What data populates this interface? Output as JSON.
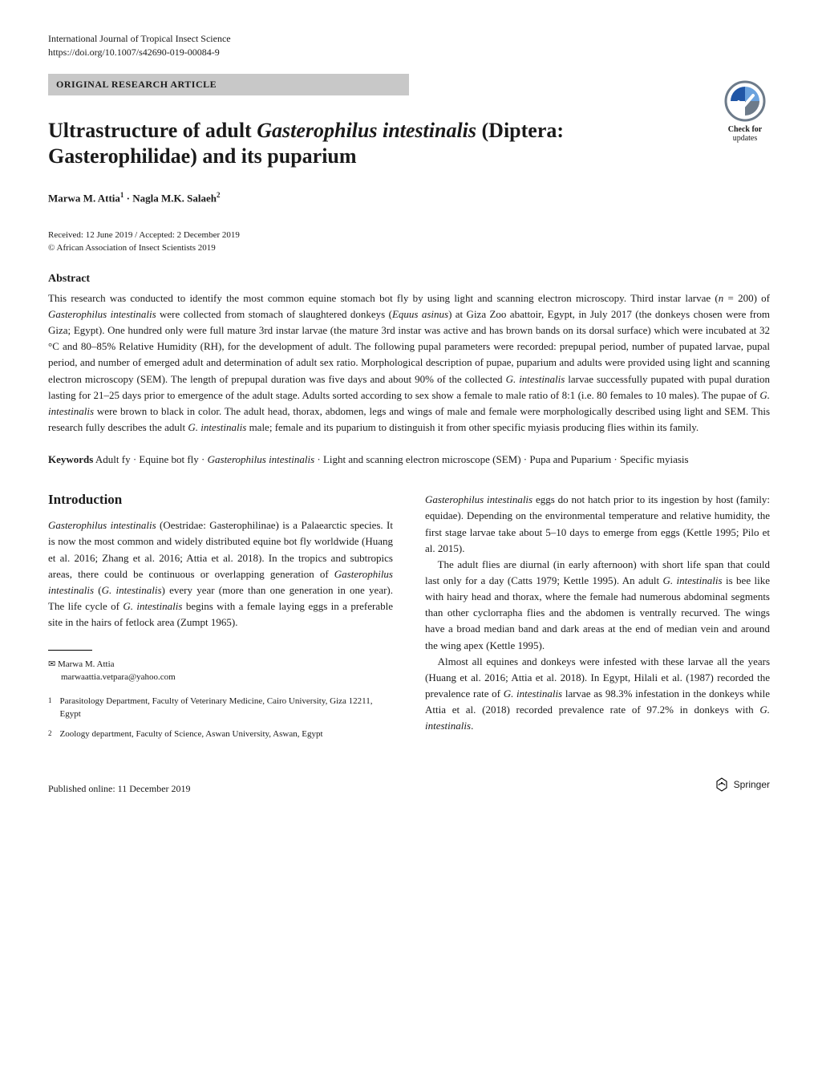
{
  "journal": {
    "name": "International Journal of Tropical Insect Science",
    "doi_url": "https://doi.org/10.1007/s42690-019-00084-9"
  },
  "article_type": "ORIGINAL RESEARCH ARTICLE",
  "check_updates": {
    "line1": "Check for",
    "line2": "updates"
  },
  "title_parts": {
    "pre": "Ultrastructure of adult ",
    "genus": "Gasterophilus intestinalis",
    "post": " (Diptera: Gasterophilidae) and its puparium"
  },
  "authors_html": "Marwa M. Attia<sup>1</sup> · Nagla M.K. Salaeh<sup>2</sup>",
  "dates": {
    "received_accepted": "Received: 12 June 2019 / Accepted: 2 December 2019",
    "copyright": "© African Association of Insect Scientists 2019"
  },
  "abstract": {
    "heading": "Abstract",
    "text_html": "This research was conducted to identify the most common equine stomach bot fly by using light and scanning electron microscopy. Third instar larvae (<span class='sci'>n</span> = 200) of <span class='sci'>Gasterophilus intestinalis</span> were collected from stomach of slaughtered donkeys (<span class='sci'>Equus asinus</span>) at Giza Zoo abattoir, Egypt, in July 2017 (the donkeys chosen were from Giza; Egypt). One hundred only were full mature 3rd instar larvae (the mature 3rd instar was active and has brown bands on its dorsal surface) which were incubated at 32 °C and 80–85% Relative Humidity (RH), for the development of adult. The following pupal parameters were recorded: prepupal period, number of pupated larvae, pupal period, and number of emerged adult and determination of adult sex ratio. Morphological description of pupae, puparium and adults were provided using light and scanning electron microscopy (SEM). The length of prepupal duration was five days and about 90% of the collected <span class='sci'>G. intestinalis</span> larvae successfully pupated with pupal duration lasting for 21–25 days prior to emergence of the adult stage. Adults sorted according to sex show a female to male ratio of 8:1 (i.e. 80 females to 10 males). The pupae of <span class='sci'>G. intestinalis</span> were brown to black in color. The adult head, thorax, abdomen, legs and wings of male and female were morphologically described using light and SEM. This research fully describes the adult <span class='sci'>G. intestinalis</span> male; female and its puparium to distinguish it from other specific myiasis producing flies within its family."
  },
  "keywords": {
    "label": "Keywords",
    "text_html": "Adult fy · Equine bot fly · <span class='sci'>Gasterophilus intestinalis</span> · Light and scanning electron microscope (SEM) · Pupa and Puparium · Specific myiasis"
  },
  "intro_heading": "Introduction",
  "col_left_html": "<span class='sci'>Gasterophilus intestinalis</span> (Oestridae: Gasterophilinae) is a Palaearctic species. It is now the most common and widely distributed equine bot fly worldwide (Huang et al. 2016; Zhang et al. 2016; Attia et al. 2018). In the tropics and subtropics areas, there could be continuous or overlapping generation of <span class='sci'>Gasterophilus intestinalis</span> (<span class='sci'>G. intestinalis</span>) every year (more than one generation in one year). The life cycle of <span class='sci'>G. intestinalis</span> begins with a female laying eggs in a preferable site in the hairs of fetlock area (Zumpt 1965).",
  "col_right_p1_html": "<span class='sci'>Gasterophilus intestinalis</span> eggs do not hatch prior to its ingestion by host (family: equidae). Depending on the environmental temperature and relative humidity, the first stage larvae take about 5–10 days to emerge from eggs (Kettle 1995; Pilo et al. 2015).",
  "col_right_p2_html": "The adult flies are diurnal (in early afternoon) with short life span that could last only for a day (Catts 1979; Kettle 1995). An adult <span class='sci'>G. intestinalis</span> is bee like with hairy head and thorax, where the female had numerous abdominal segments than other cyclorrapha flies and the abdomen is ventrally recurved. The wings have a broad median band and dark areas at the end of median vein and around the wing apex (Kettle 1995).",
  "col_right_p3_html": "Almost all equines and donkeys were infested with these larvae all the years (Huang et al. 2016; Attia et al. 2018). In Egypt, Hilali et al. (1987) recorded the prevalence rate of <span class='sci'>G. intestinalis</span> larvae as 98.3% infestation in the donkeys while Attia et al. (2018) recorded prevalence rate of 97.2% in donkeys with <span class='sci'>G. intestinalis</span>.",
  "correspondence": {
    "name": "Marwa M. Attia",
    "email": "marwaattia.vetpara@yahoo.com"
  },
  "affiliations": [
    {
      "num": "1",
      "text": "Parasitology Department, Faculty of Veterinary Medicine, Cairo University, Giza 12211, Egypt"
    },
    {
      "num": "2",
      "text": "Zoology department, Faculty of Science, Aswan University, Aswan, Egypt"
    }
  ],
  "footer": {
    "published_online": "Published online: 11 December 2019",
    "publisher": "Springer"
  },
  "colors": {
    "bar_bg": "#c8c8c8",
    "icon_blue_dark": "#2056a6",
    "icon_blue_light": "#6aa2de",
    "icon_grey": "#6d7b8a"
  }
}
